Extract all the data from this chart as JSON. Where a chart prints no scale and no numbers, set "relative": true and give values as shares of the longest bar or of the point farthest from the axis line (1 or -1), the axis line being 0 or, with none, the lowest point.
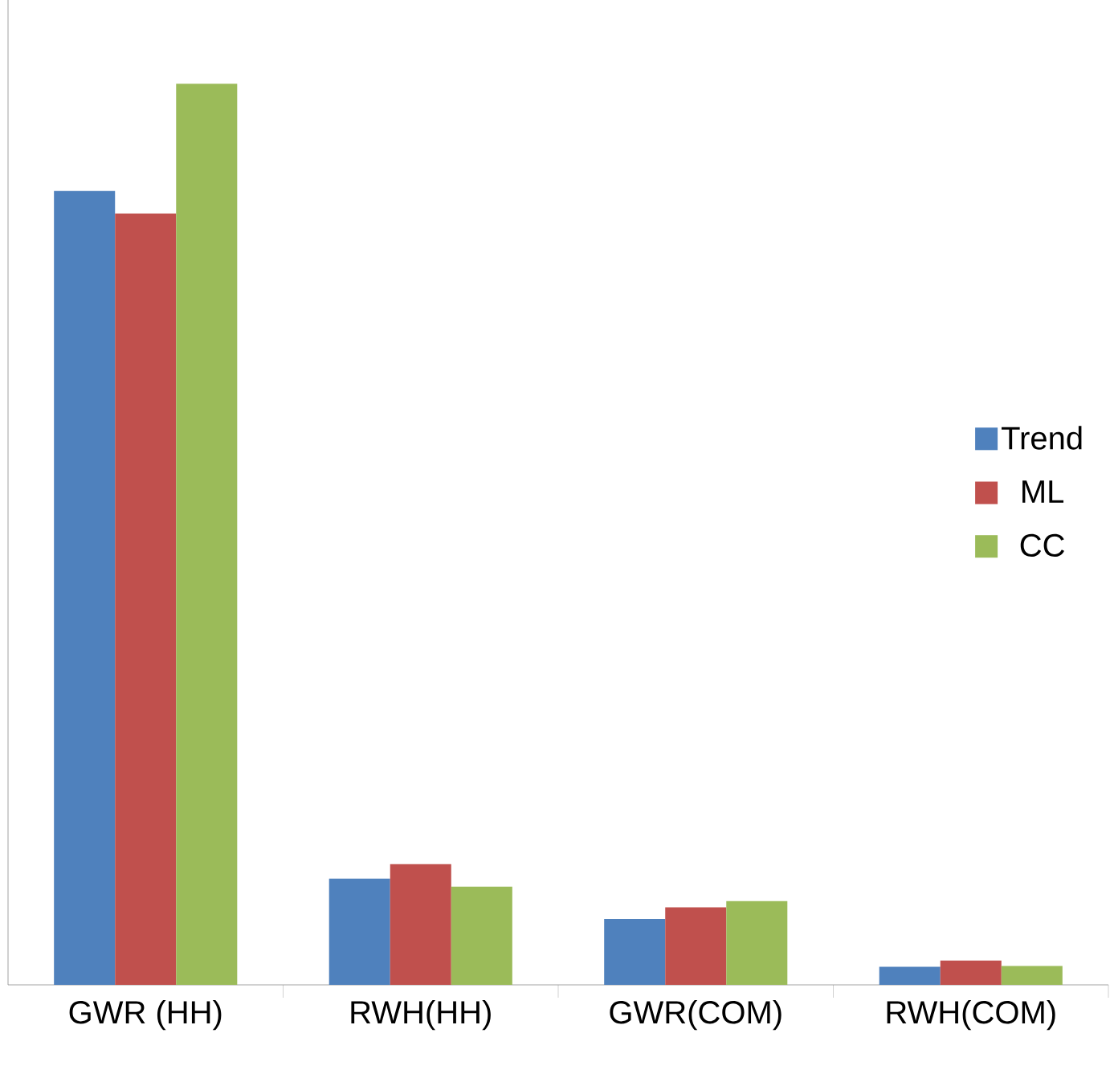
{
  "chart_data": {
    "type": "bar",
    "relative": true,
    "categories": [
      "GWR (HH)",
      "RWH(HH)",
      "GWR(COM)",
      "RWH(COM)"
    ],
    "series": [
      {
        "name": "Trend",
        "color": "#4f81bd",
        "values": [
          0.881,
          0.118,
          0.073,
          0.02
        ]
      },
      {
        "name": "ML",
        "color": "#c0504d",
        "values": [
          0.856,
          0.134,
          0.086,
          0.027
        ]
      },
      {
        "name": "CC",
        "color": "#9bbb59",
        "values": [
          1,
          0.109,
          0.093,
          0.021
        ]
      }
    ],
    "legend": "right"
  }
}
